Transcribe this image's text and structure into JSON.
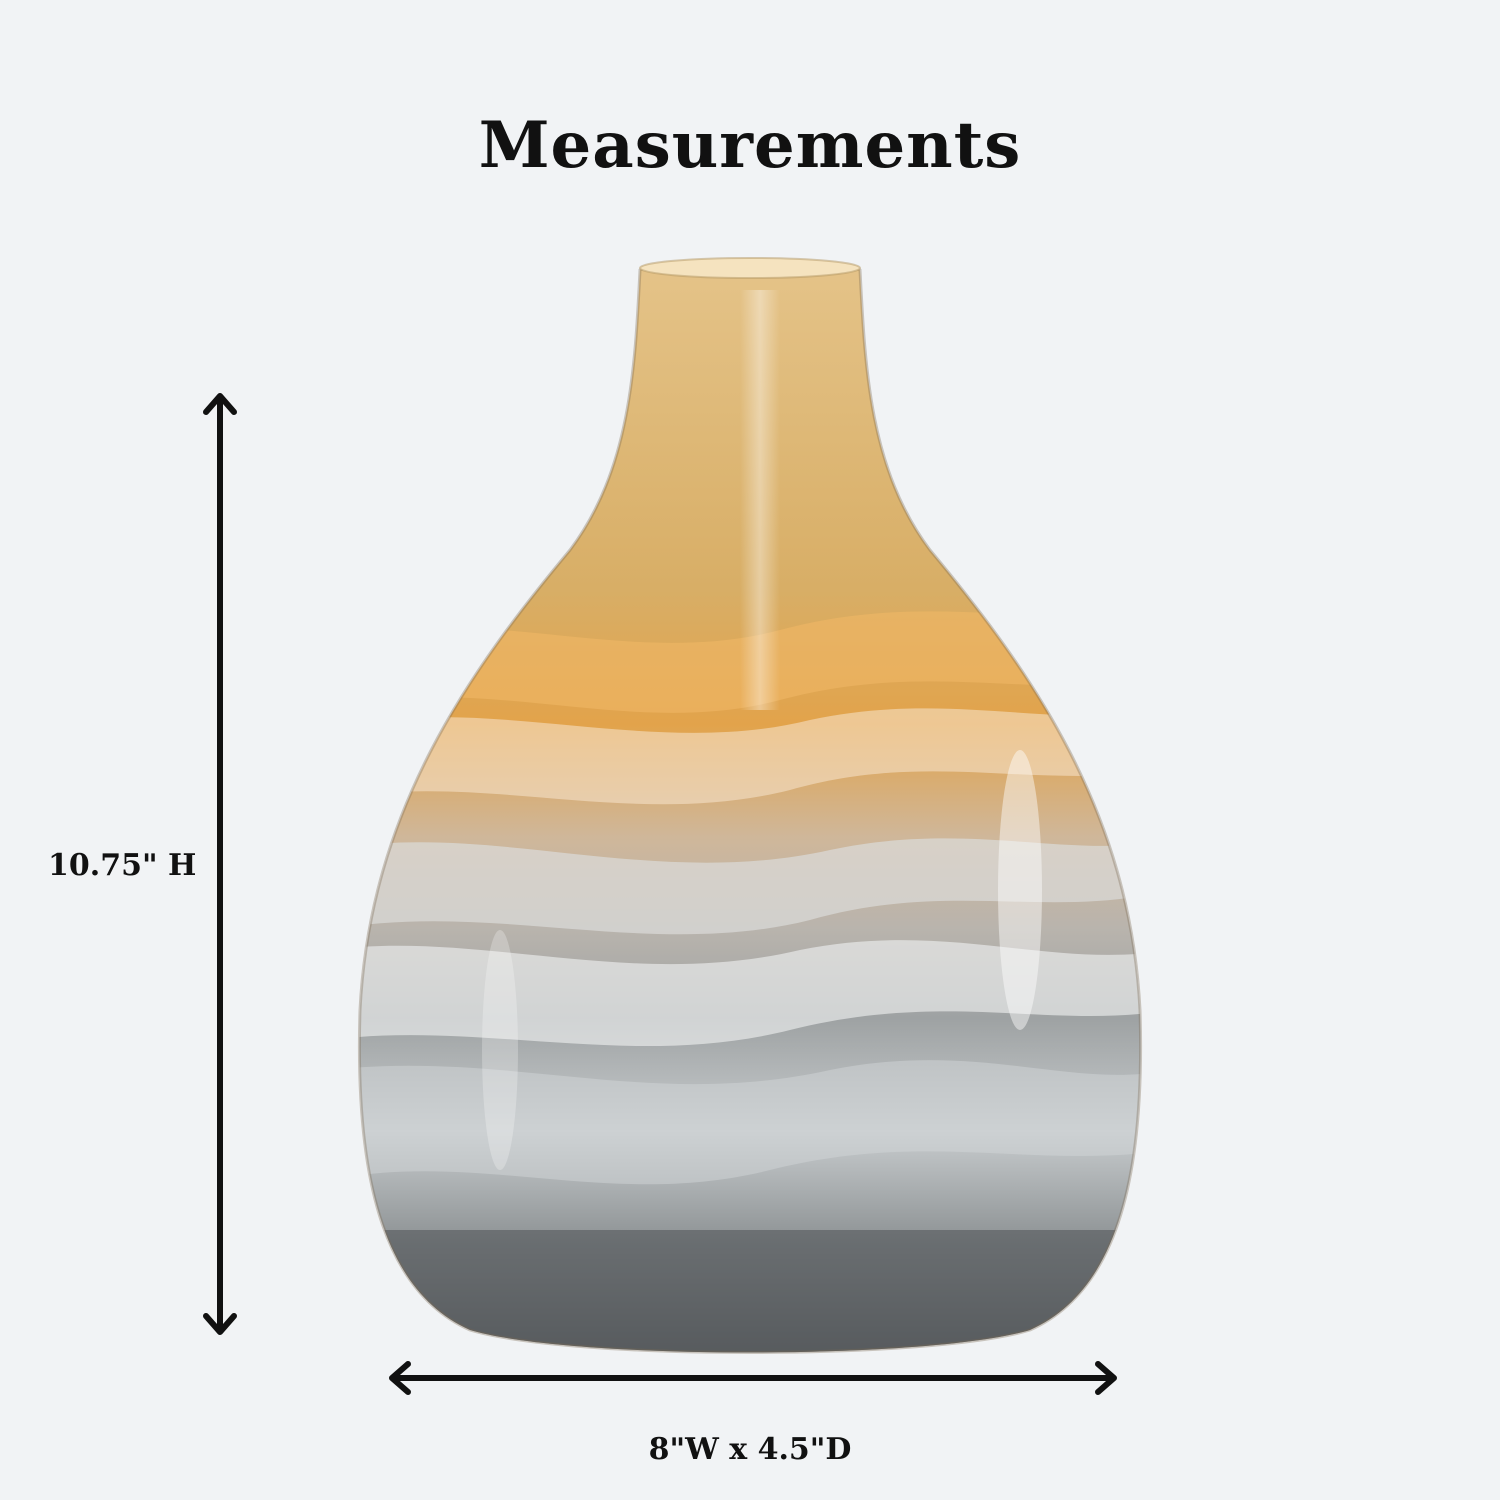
{
  "title": "Measurements",
  "dimensions": {
    "height_label": "10.75\" H",
    "width_label": "8\"W x 4.5\"D"
  },
  "colors": {
    "background": "#f1f3f5",
    "text": "#111111",
    "amber": "#d9a653",
    "grey": "#8f9597"
  }
}
